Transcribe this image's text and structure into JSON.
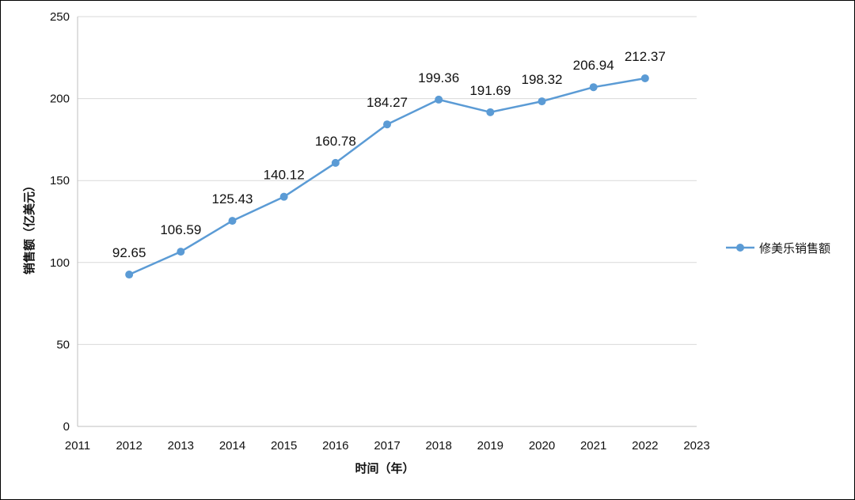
{
  "chart_data": {
    "type": "line",
    "title": "",
    "xlabel": "时间（年）",
    "ylabel": "销售额（亿美元）",
    "xlim": [
      2011,
      2023
    ],
    "ylim": [
      0,
      250
    ],
    "x_ticks": [
      "2011",
      "2012",
      "2013",
      "2014",
      "2015",
      "2016",
      "2017",
      "2018",
      "2019",
      "2020",
      "2021",
      "2022",
      "2023"
    ],
    "y_ticks": [
      "0",
      "50",
      "100",
      "150",
      "200",
      "250"
    ],
    "grid": "horizontal",
    "legend_position": "right",
    "series": [
      {
        "name": "修美乐销售额",
        "color": "#5b9bd5",
        "x": [
          2012,
          2013,
          2014,
          2015,
          2016,
          2017,
          2018,
          2019,
          2020,
          2021,
          2022
        ],
        "values": [
          92.65,
          106.59,
          125.43,
          140.12,
          160.78,
          184.27,
          199.36,
          191.69,
          198.32,
          206.94,
          212.37
        ],
        "labels": [
          "92.65",
          "106.59",
          "125.43",
          "140.12",
          "160.78",
          "184.27",
          "199.36",
          "191.69",
          "198.32",
          "206.94",
          "212.37"
        ]
      }
    ]
  }
}
